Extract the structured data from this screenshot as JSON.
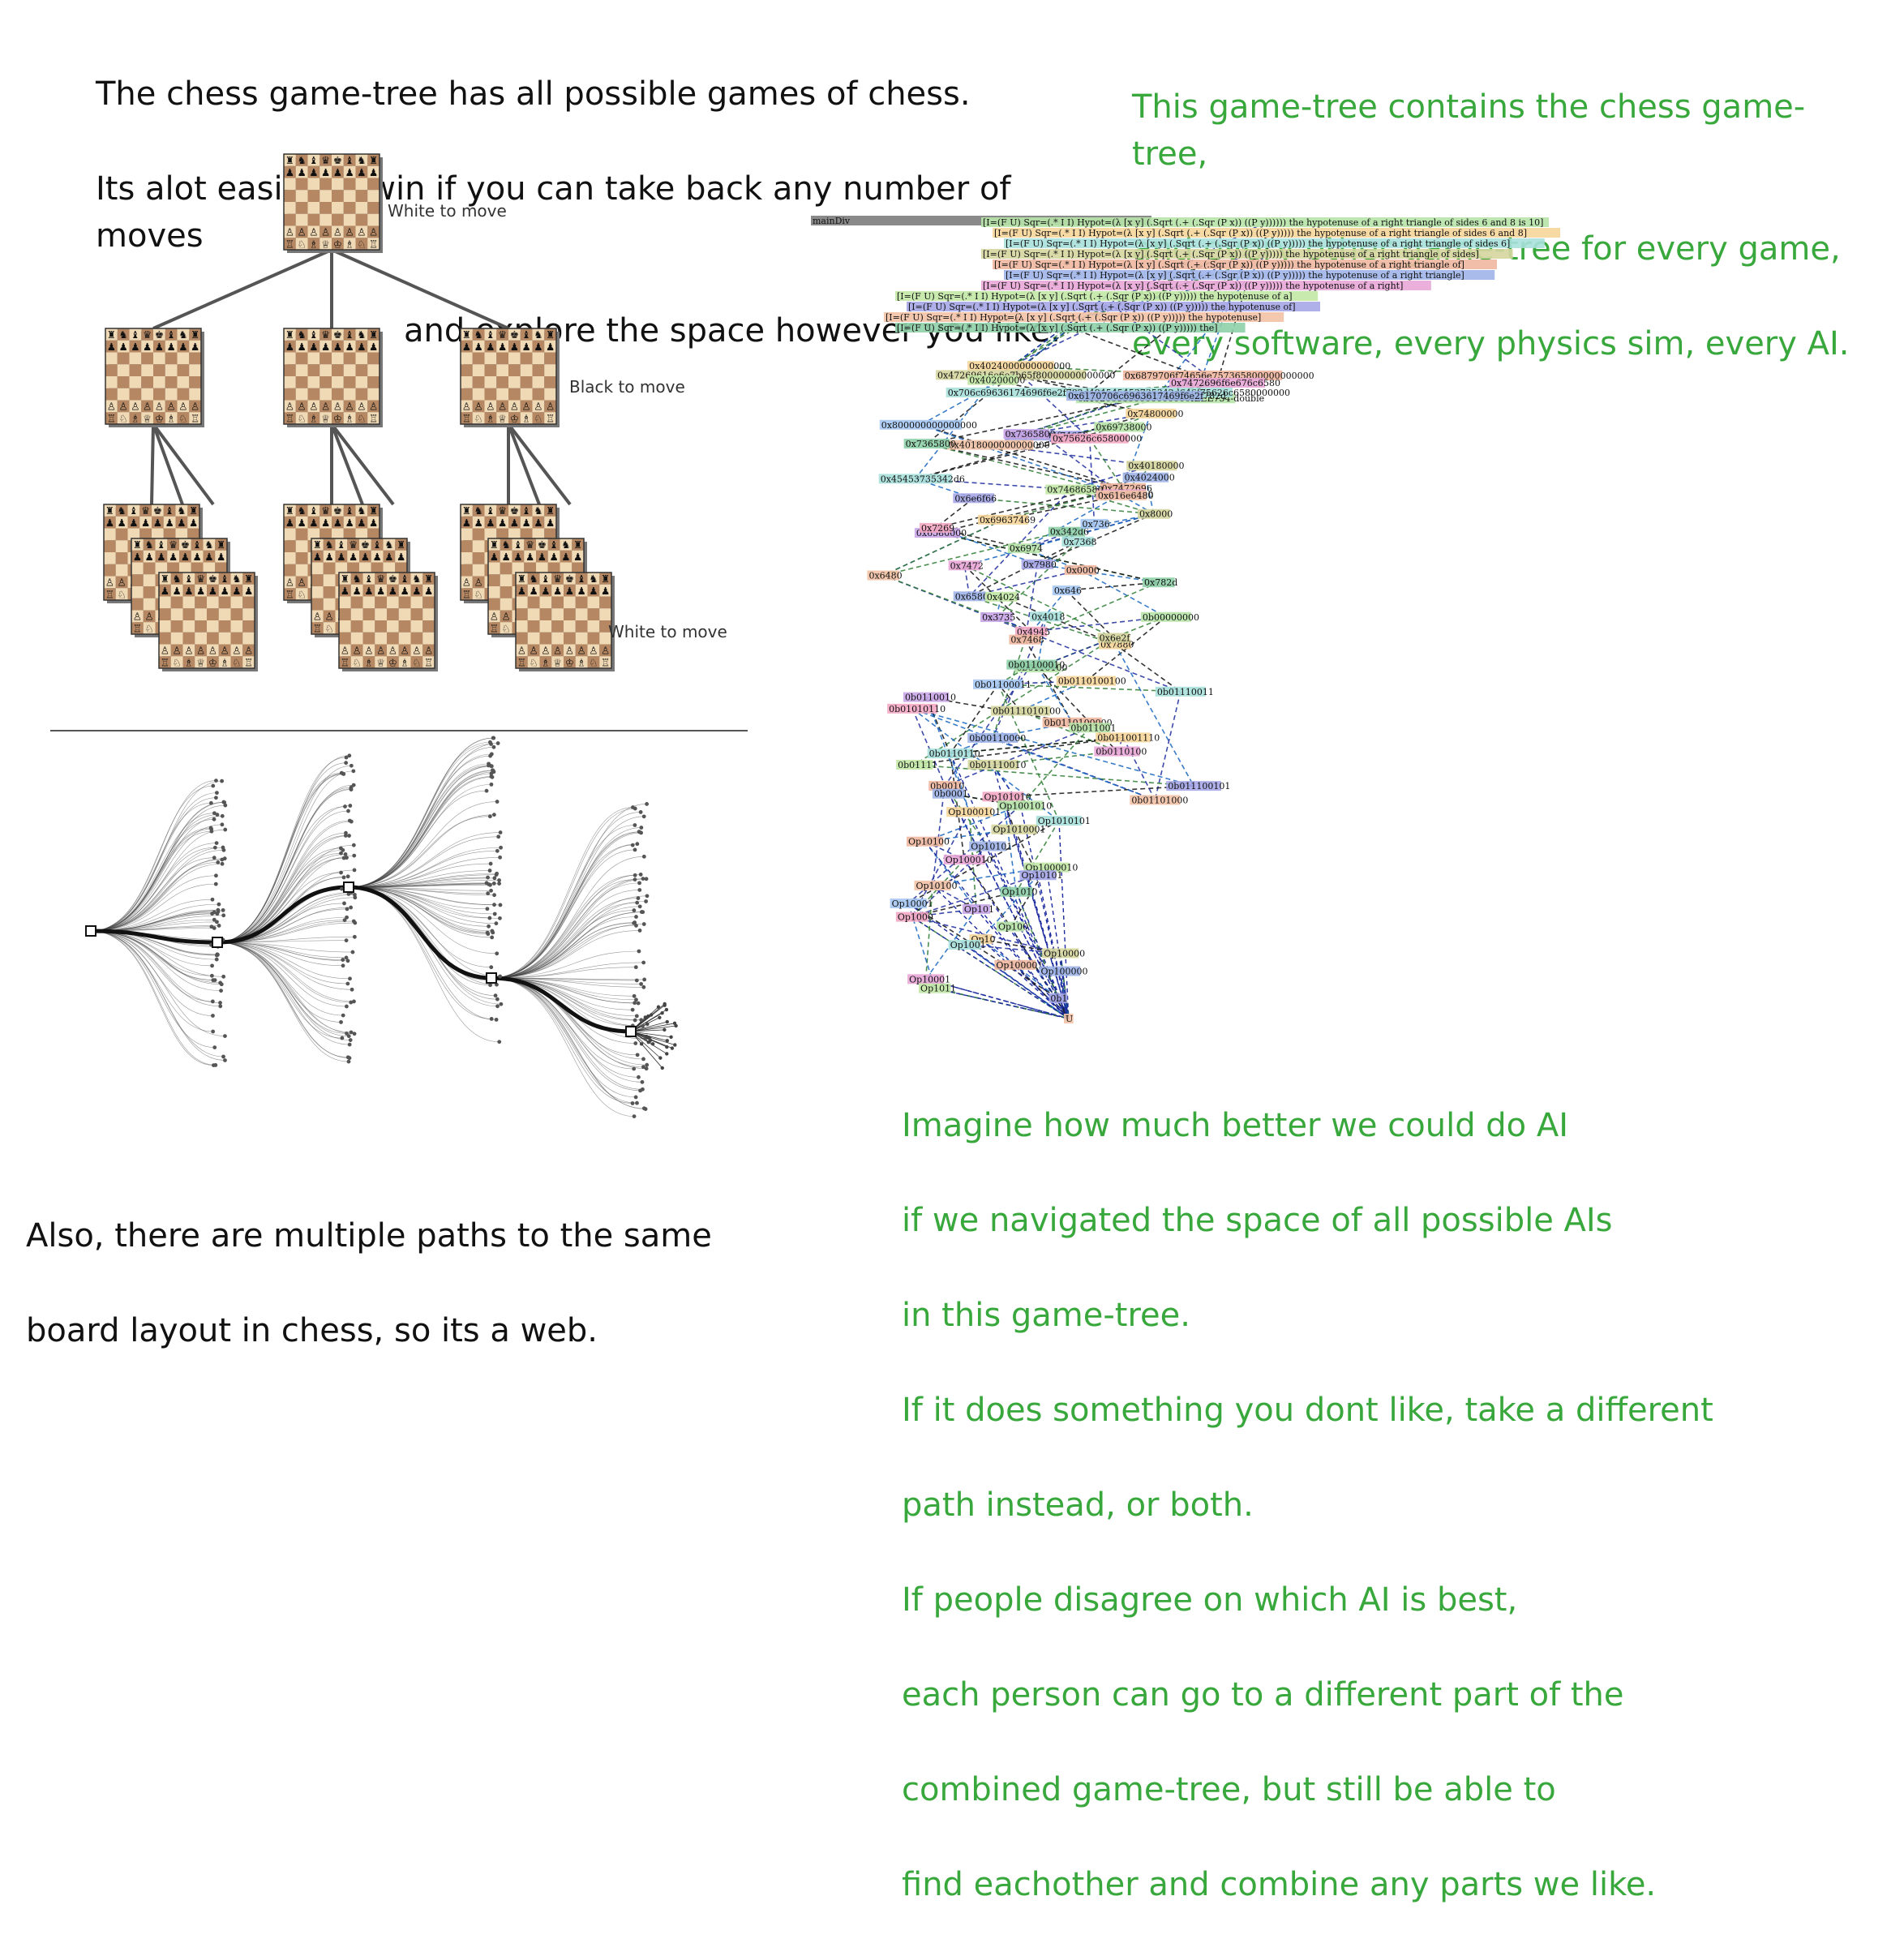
{
  "texts": {
    "top_left": [
      "The chess game-tree has all possible games of chess.",
      "Its alot easier to win if you can take back any number of moves",
      "and explore the space however you like."
    ],
    "top_right": [
      "This game-tree contains the chess game-tree,",
      "and every other game-tree for every game,",
      "every software, every physics sim, every AI."
    ],
    "bottom_left": [
      "Also, there are multiple paths to the same",
      "board layout in chess, so its a web."
    ],
    "bottom_right": [
      "Imagine how much better we could do AI",
      "if we navigated the space of all possible AIs",
      "in this game-tree.",
      "If it does something you dont like, take a different",
      "path instead, or both.",
      "If people disagree on which AI is best,",
      "each person can go to a different part of the",
      "combined game-tree, but still be able to",
      "find eachother and combine any parts we like."
    ]
  },
  "chess_tree": {
    "labels": {
      "root": "White to move",
      "level1": "Black to move",
      "level2": "White to move"
    }
  },
  "graph": {
    "header_label": "mainDiv",
    "top_nodes": [
      "[I=(F U) Sqr=(.* I I) Hypot=(λ [x y] (.Sqrt (.+ (.Sqr (P x)) ((P y)))))) the hypotenuse of a right triangle of sides 6 and 8 is 10]",
      "[I=(F U) Sqr=(.* I I) Hypot=(λ [x y] (.Sqrt (.+ (.Sqr (P x)) ((P y))))) the hypotenuse of a right triangle of sides 6 and 8]",
      "[I=(F U) Sqr=(.* I I) Hypot=(λ [x y] (.Sqrt (.+ (.Sqr (P x)) ((P y))))) the hypotenuse of a right triangle of sides 6]",
      "[I=(F U) Sqr=(.* I I) Hypot=(λ [x y] (.Sqrt (.+ (.Sqr (P x)) ((P y))))) the hypotenuse of a right triangle of sides]",
      "[I=(F U) Sqr=(.* I I) Hypot=(λ [x y] (.Sqrt (.+ (.Sqr (P x)) ((P y))))) the hypotenuse of a right triangle of]",
      "[I=(F U) Sqr=(.* I I) Hypot=(λ [x y] (.Sqrt (.+ (.Sqr (P x)) ((P y))))) the hypotenuse of a right triangle]",
      "[I=(F U) Sqr=(.* I I) Hypot=(λ [x y] (.Sqrt (.+ (.Sqr (P x)) ((P y))))) the hypotenuse of a right]",
      "[I=(F U) Sqr=(.* I I) Hypot=(λ [x y] (.Sqrt (.+ (.Sqr (P x)) ((P y))))) the hypotenuse of a]",
      "[I=(F U) Sqr=(.* I I) Hypot=(λ [x y] (.Sqrt (.+ (.Sqr (P x)) ((P y))))) the hypotenuse of]",
      "[I=(F U) Sqr=(.* I I) Hypot=(λ [x y] (.Sqrt (.+ (.Sqr (P x)) ((P y))))) the hypotenuse]",
      "[I=(F U) Sqr=(.* I I) Hypot=(λ [x y] (.Sqrt (.+ (.Sqr (P x)) ((P y))))) the]"
    ],
    "mid_nodes": [
      "0x402000000000000000IEEE754-double",
      "0x4024000000000000",
      "0x706c69636174696f6e2f782d494545453735342d646f75626c6580000000",
      "0x47269616e6e7b65f80000000000000",
      "0x6879706f74656e757365800000000000",
      "0x6170706c6963617469f6e2f782d",
      "0x7472696f6e676c6580",
      "0x40200000",
      "0x6879706f74656e",
      "0x4018000000000000",
      "0x7365800",
      "0x800000000000000",
      "0x7365800",
      "0x75626c65800000",
      "0x69738000",
      "0x74800000",
      "0x45453735342d6",
      "0x40180000",
      "0x7472696",
      "0x4024000",
      "0x00000000",
      "0x74686580",
      "0x6e6f66",
      "0x616e6480",
      "0x342d6",
      "0x736",
      "0x6580000",
      "0x7269",
      "0x6974",
      "0x69637469",
      "0x7368",
      "0x8000",
      "0x0000",
      "0x6580",
      "0x7472",
      "0x4024",
      "0x7980",
      "0x6480",
      "0x782d",
      "0x646",
      "0x3735",
      "0x4945",
      "0b00000000",
      "0x7880",
      "0x4018",
      "0x6e2f",
      "0x7468"
    ],
    "bin_nodes": [
      "0b0110100",
      "0b0110100100",
      "0b01110011",
      "0b0111010100",
      "0b0110100000",
      "0b00110000",
      "0b0110100",
      "0b01111",
      "0b011100101",
      "0b01101000",
      "0b01100010",
      "0b01100011",
      "0b0110010",
      "0b01010110",
      "0b011001",
      "0b011001110",
      "0b0110110",
      "0b01110010",
      "0b0010",
      "0b0001"
    ],
    "op_nodes": [
      "Op101010",
      "Op1001010",
      "Op1000101",
      "Op1010101",
      "Op1010001",
      "Op10100",
      "Op10101",
      "Op100010",
      "Op1000010",
      "Op10101",
      "Op10100",
      "Op1010",
      "Op10001",
      "Op101",
      "Op1000",
      "Op100",
      "Op10",
      "Op1001",
      "Op10000",
      "Op100001",
      "Op100000",
      "Op10001",
      "Op1011",
      "0b1",
      "U"
    ]
  }
}
